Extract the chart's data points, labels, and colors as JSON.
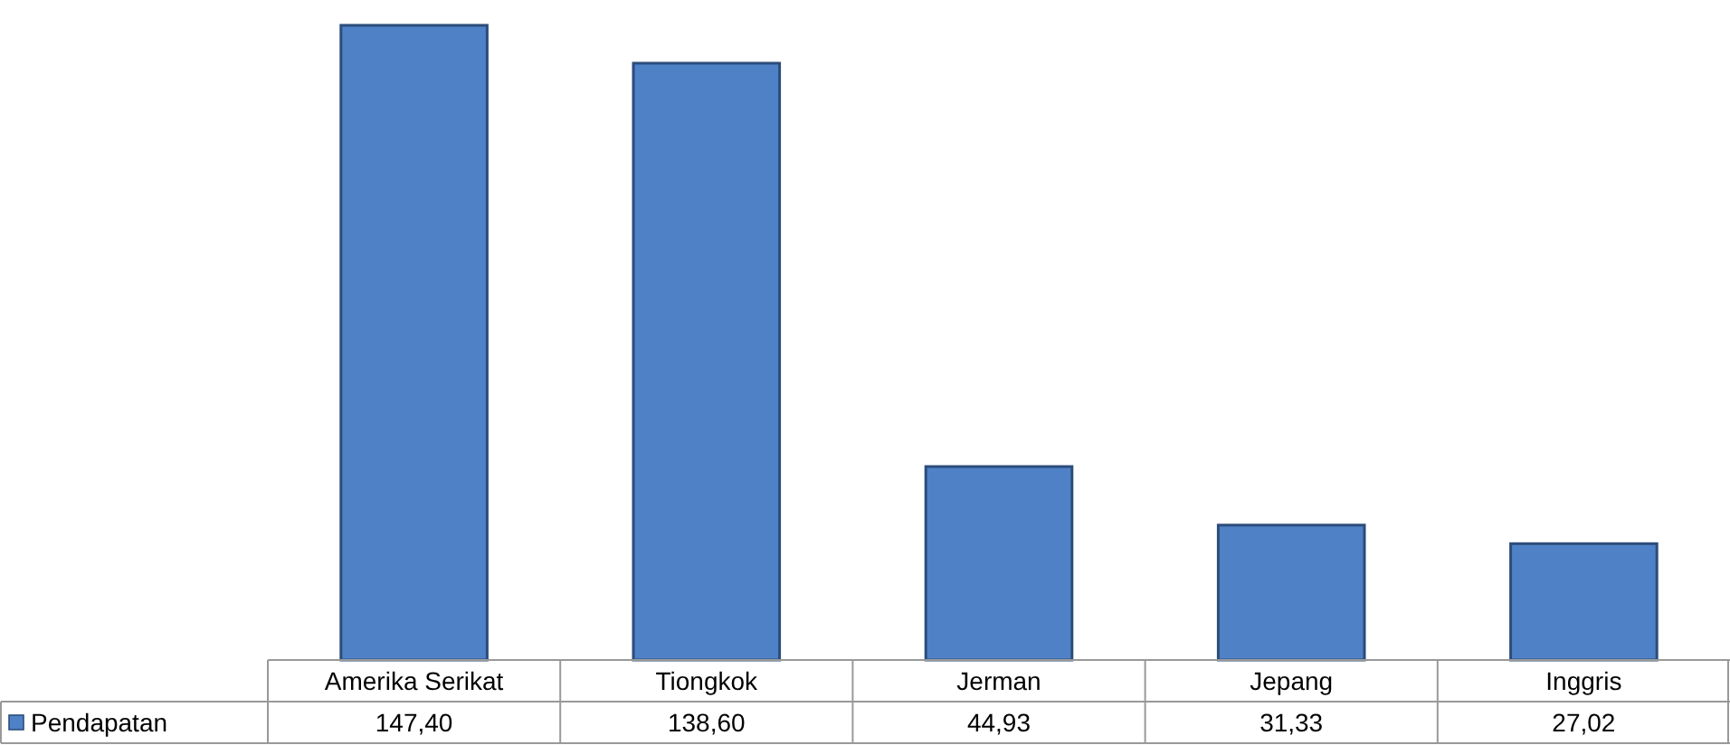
{
  "chart_data": {
    "type": "bar",
    "categories": [
      "Amerika Serikat",
      "Tiongkok",
      "Jerman",
      "Jepang",
      "Inggris"
    ],
    "series": [
      {
        "name": "Pendapatan",
        "color": "#4f81c7",
        "values": [
          147.4,
          138.6,
          44.93,
          31.33,
          27.02
        ],
        "value_labels": [
          "147,40",
          "138,60",
          "44,93",
          "31,33",
          "27,02"
        ]
      }
    ],
    "legend": "bottom"
  }
}
